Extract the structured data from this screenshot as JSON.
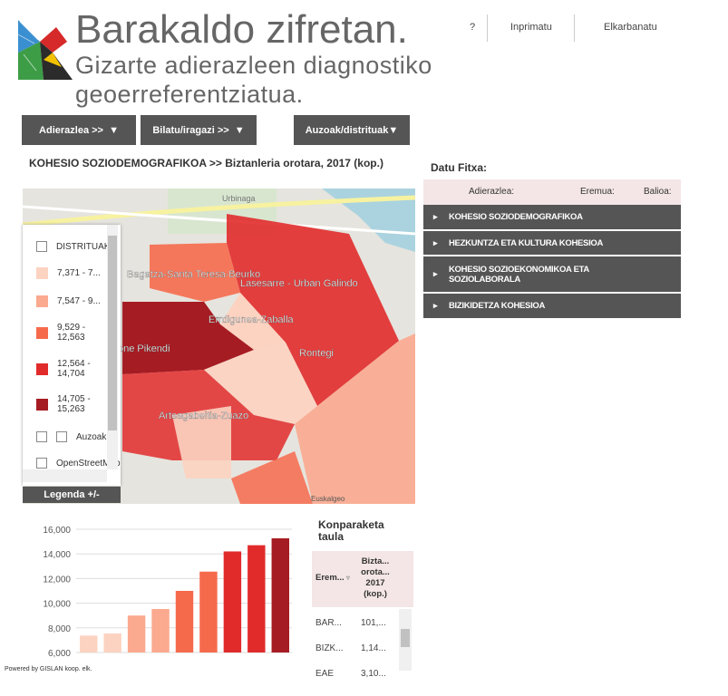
{
  "header": {
    "title": "Barakaldo zifretan.",
    "subtitle_lines": [
      "Gizarte adierazleen diagnostiko",
      "geoerreferentziatua."
    ]
  },
  "top_links": [
    "?",
    "Inprimatu",
    "Elkarbanatu"
  ],
  "menu": [
    "Adierazlea >>",
    "Bilatu/iragazi >>",
    "Auzoak/distrituak"
  ],
  "heading": "KOHESIO SOZIODEMOGRAFIKOA >> Biztanleria orotara, 2017 (kop.)",
  "map": {
    "labels": [
      "Urbinaga",
      "Bagatza-Santa Teresa-Beurko",
      "Lasesarre - Urban Galindo",
      "Errdigunea-Zaballa",
      "Rontegi",
      "one Pikendi",
      "Arteagabeitia-Zuazo",
      "Euskalgeo"
    ],
    "legend": {
      "items": [
        "DISTRITUAK",
        "7,371 - 7...",
        "7,547 - 9...",
        "9,529 - 12,563",
        "12,564 - 14,704",
        "14,705 - 15,263",
        "Auzoak",
        "OpenStreetMap"
      ],
      "button": "Legenda +/-"
    }
  },
  "datu_fitxa": {
    "title": "Datu Fitxa:",
    "columns": [
      "Adierazlea:",
      "Eremua:",
      "Balioa:"
    ],
    "rows": [
      "KOHESIO SOZIODEMOGRAFIKOA",
      "HEZKUNTZA ETA KULTURA KOHESIOA",
      "KOHESIO SOZIOEKONOMIKOA ETA SOZIOLABORALA",
      "BIZIKIDETZA KOHESIOA"
    ]
  },
  "chart_data": {
    "type": "bar",
    "values": [
      7371,
      7547,
      9000,
      9529,
      11000,
      12563,
      14200,
      14704,
      15263
    ],
    "colors": [
      "#fcd3c1",
      "#fcd3c1",
      "#fba98f",
      "#fba98f",
      "#f66a4c",
      "#f66a4c",
      "#e12b2b",
      "#e12b2b",
      "#a61c23"
    ],
    "ylim": [
      6000,
      16000
    ],
    "yticks": [
      {
        "value": 6000,
        "label": "6,000"
      },
      {
        "value": 8000,
        "label": "8,000"
      },
      {
        "value": 10000,
        "label": "10,000"
      },
      {
        "value": 12000,
        "label": "12,000"
      },
      {
        "value": 14000,
        "label": "14,000"
      },
      {
        "value": 16000,
        "label": "16,000"
      }
    ],
    "grid": true
  },
  "comparison": {
    "title": "Konparaketa taula",
    "columns": [
      [
        "Erem..."
      ],
      [
        "Bizta...",
        "orota...",
        "2017",
        "(kop.)"
      ]
    ],
    "rows": [
      [
        "BAR...",
        "101,..."
      ],
      [
        "BIZK...",
        "1,14..."
      ],
      [
        "EAE",
        "3,10..."
      ]
    ]
  },
  "footer": "Powered by GISLAN koop. elk."
}
